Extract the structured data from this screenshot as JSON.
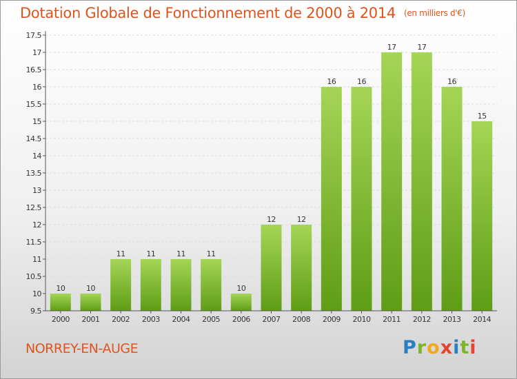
{
  "header": {
    "title": "Dotation Globale de Fonctionnement de 2000 à 2014",
    "unit": "(en milliers d'€)"
  },
  "footer": {
    "place": "NORREY-EN-AUGE",
    "logo_text": "Proxiti"
  },
  "colors": {
    "title": "#e0531d",
    "bar_light": "#a5d556",
    "bar_dark": "#5f9d16",
    "logo_blue": "#2a7fc1",
    "logo_green": "#7bb52a",
    "logo_orange": "#f2a81d",
    "logo_red": "#e8432f"
  },
  "chart_data": {
    "type": "bar",
    "title": "Dotation Globale de Fonctionnement de 2000 à 2014",
    "subtitle": "(en milliers d'€)",
    "xlabel": "",
    "ylabel": "",
    "categories": [
      "2000",
      "2001",
      "2002",
      "2003",
      "2004",
      "2005",
      "2006",
      "2007",
      "2008",
      "2009",
      "2010",
      "2011",
      "2012",
      "2013",
      "2014"
    ],
    "values": [
      10,
      10,
      11,
      11,
      11,
      11,
      10,
      12,
      12,
      16,
      16,
      17,
      17,
      16,
      15
    ],
    "data_labels": [
      "10",
      "10",
      "11",
      "11",
      "11",
      "11",
      "10",
      "12",
      "12",
      "16",
      "16",
      "17",
      "17",
      "16",
      "15"
    ],
    "ylim": [
      9.5,
      17.5
    ],
    "yticks": [
      9.5,
      10,
      10.5,
      11,
      11.5,
      12,
      12.5,
      13,
      13.5,
      14,
      14.5,
      15,
      15.5,
      16,
      16.5,
      17,
      17.5
    ],
    "ytick_labels": [
      "9.5",
      "10",
      "10.5",
      "11",
      "11.5",
      "12",
      "12.5",
      "13",
      "13.5",
      "14",
      "14.5",
      "15",
      "15.5",
      "16",
      "16.5",
      "17",
      "17.5"
    ],
    "grid": true,
    "legend": "none"
  }
}
